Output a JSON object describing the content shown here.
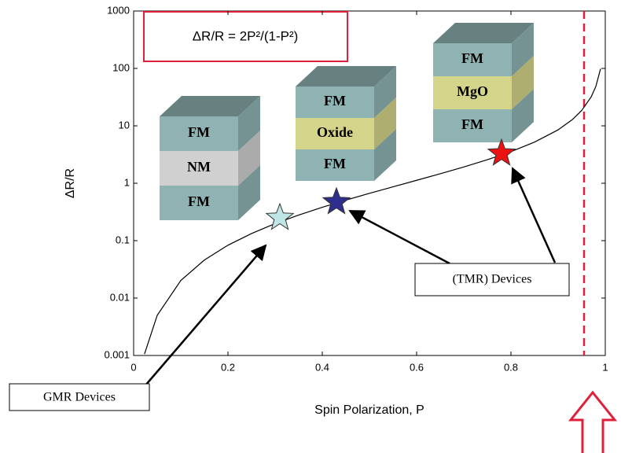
{
  "chart_data": {
    "type": "line",
    "x_label": "Spin Polarization, P",
    "y_label": "ΔR/R",
    "log_y": true,
    "xlim": [
      0,
      1
    ],
    "ylim": [
      0.001,
      1000
    ],
    "xticks": [
      0,
      0.2,
      0.4,
      0.6,
      0.8,
      1
    ],
    "yticks": [
      0.001,
      0.01,
      0.1,
      1,
      10,
      100,
      1000
    ],
    "series": [
      {
        "color": "#000000",
        "x": [
          0.023,
          0.05,
          0.1,
          0.15,
          0.2,
          0.25,
          0.3,
          0.35,
          0.4,
          0.45,
          0.5,
          0.55,
          0.6,
          0.65,
          0.7,
          0.75,
          0.8,
          0.85,
          0.9,
          0.93,
          0.95,
          0.97,
          0.98,
          0.99
        ],
        "values": [
          0.00106,
          0.00501,
          0.0202,
          0.046,
          0.0833,
          0.133,
          0.198,
          0.279,
          0.381,
          0.508,
          0.667,
          0.867,
          1.125,
          1.463,
          1.922,
          2.571,
          3.556,
          5.207,
          8.526,
          12.8,
          18.51,
          31.84,
          48.5,
          98.5
        ]
      }
    ],
    "markers": {
      "x": [
        0.31,
        0.43,
        0.78
      ],
      "values": [
        0.25,
        0.47,
        3.3
      ],
      "colors": [
        "#bfe6e6",
        "#2e2e8f",
        "#ee1111"
      ]
    },
    "reference_line": {
      "x": 0.955,
      "color": "#e0203a"
    },
    "formula": "ΔR/R = 2P²/(1-P²)",
    "callouts": [
      "GMR Devices",
      "(TMR) Devices"
    ],
    "stacks": [
      {
        "layers": [
          {
            "label": "FM",
            "color": "#8fb3b3"
          },
          {
            "label": "NM",
            "color": "#d0d0d0"
          },
          {
            "label": "FM",
            "color": "#8fb3b3"
          }
        ]
      },
      {
        "layers": [
          {
            "label": "FM",
            "color": "#8fb3b3"
          },
          {
            "label": "Oxide",
            "color": "#d4d48a"
          },
          {
            "label": "FM",
            "color": "#8fb3b3"
          }
        ]
      },
      {
        "layers": [
          {
            "label": "FM",
            "color": "#8fb3b3"
          },
          {
            "label": "MgO",
            "color": "#d4d48a"
          },
          {
            "label": "FM",
            "color": "#8fb3b3"
          }
        ]
      }
    ]
  }
}
